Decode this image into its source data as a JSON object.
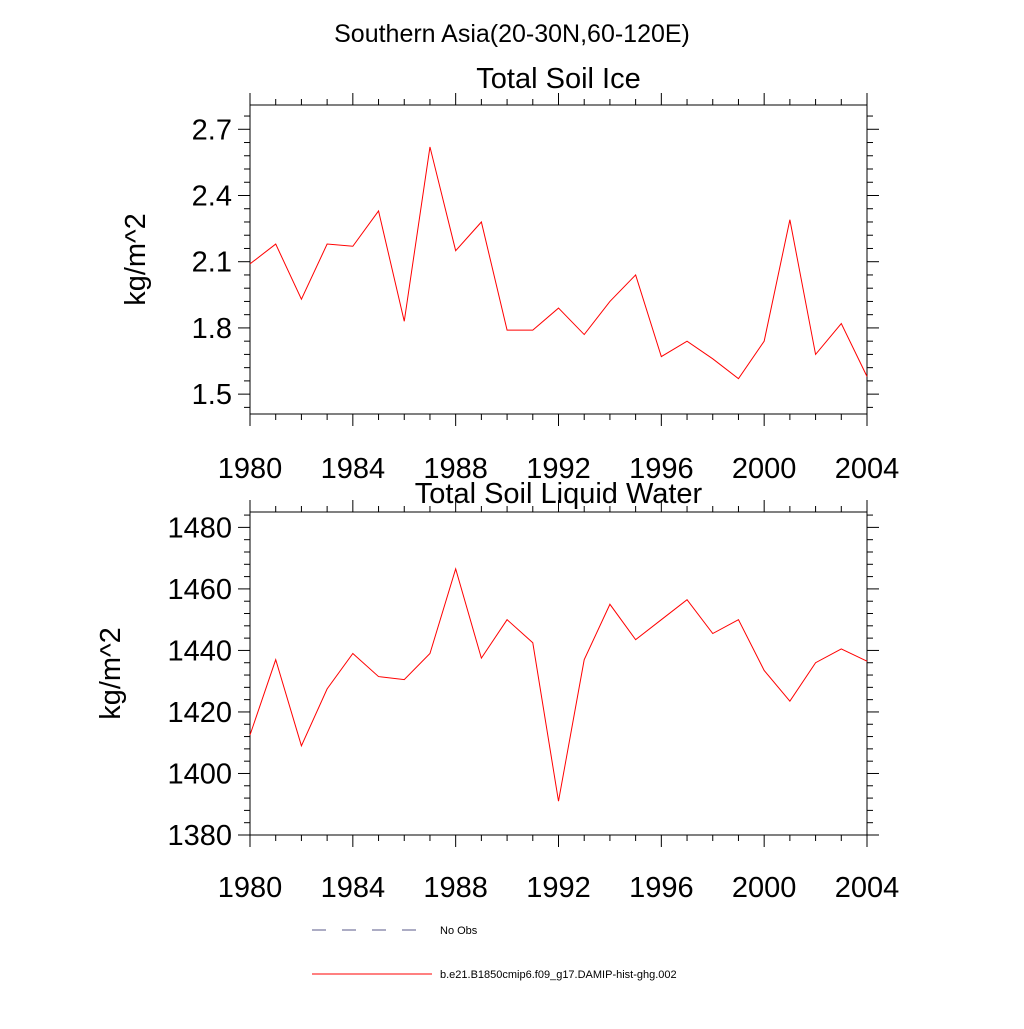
{
  "figure": {
    "title": "Southern Asia(20-30N,60-120E)"
  },
  "chart_data": [
    {
      "type": "line",
      "title": "Total Soil Ice",
      "xlabel": "",
      "ylabel": "kg/m^2",
      "xlim": [
        1980,
        2004
      ],
      "ylim": [
        1.41,
        2.81
      ],
      "xticks": [
        1980,
        1984,
        1988,
        1992,
        1996,
        2000,
        2004
      ],
      "xtick_labels": [
        "1980",
        "1984",
        "1988",
        "1992",
        "1996",
        "2000",
        "2004"
      ],
      "yticks": [
        1.5,
        1.8,
        2.1,
        2.4,
        2.7
      ],
      "ytick_labels": [
        "1.5",
        "1.8",
        "2.1",
        "2.4",
        "2.7"
      ],
      "grid": false,
      "x": [
        1980,
        1981,
        1982,
        1983,
        1984,
        1985,
        1986,
        1987,
        1988,
        1989,
        1990,
        1991,
        1992,
        1993,
        1994,
        1995,
        1996,
        1997,
        1998,
        1999,
        2000,
        2001,
        2002,
        2003,
        2004
      ],
      "series": [
        {
          "name": "b.e21.B1850cmip6.f09_g17.DAMIP-hist-ghg.002",
          "color": "#ff0000",
          "values": [
            2.09,
            2.18,
            1.93,
            2.18,
            2.17,
            2.33,
            1.83,
            2.62,
            2.15,
            2.28,
            1.79,
            1.79,
            1.89,
            1.77,
            1.92,
            2.04,
            1.67,
            1.74,
            1.66,
            1.57,
            1.74,
            2.29,
            1.68,
            1.82,
            1.58
          ]
        }
      ]
    },
    {
      "type": "line",
      "title": "Total Soil Liquid Water",
      "xlabel": "",
      "ylabel": "kg/m^2",
      "xlim": [
        1980,
        2004
      ],
      "ylim": [
        1380,
        1485
      ],
      "xticks": [
        1980,
        1984,
        1988,
        1992,
        1996,
        2000,
        2004
      ],
      "xtick_labels": [
        "1980",
        "1984",
        "1988",
        "1992",
        "1996",
        "2000",
        "2004"
      ],
      "yticks": [
        1380,
        1400,
        1420,
        1440,
        1460,
        1480
      ],
      "ytick_labels": [
        "1380",
        "1400",
        "1420",
        "1440",
        "1460",
        "1480"
      ],
      "grid": false,
      "x": [
        1980,
        1981,
        1982,
        1983,
        1984,
        1985,
        1986,
        1987,
        1988,
        1989,
        1990,
        1991,
        1992,
        1993,
        1994,
        1995,
        1996,
        1997,
        1998,
        1999,
        2000,
        2001,
        2002,
        2003,
        2004
      ],
      "series": [
        {
          "name": "b.e21.B1850cmip6.f09_g17.DAMIP-hist-ghg.002",
          "color": "#ff0000",
          "values": [
            1412.5,
            1437.0,
            1409.0,
            1427.5,
            1439.0,
            1431.5,
            1430.5,
            1439.0,
            1466.5,
            1437.5,
            1450.0,
            1442.5,
            1391.0,
            1437.0,
            1455.0,
            1443.5,
            1450.0,
            1456.5,
            1445.5,
            1450.0,
            1433.5,
            1423.5,
            1436.0,
            1440.5,
            1436.5
          ]
        }
      ]
    }
  ],
  "legend": {
    "placement": "bottom",
    "items": [
      {
        "label": "No Obs",
        "style": "dashed",
        "color": "#5a5a8a"
      },
      {
        "label": "b.e21.B1850cmip6.f09_g17.DAMIP-hist-ghg.002",
        "style": "solid",
        "color": "#ff0000"
      }
    ]
  }
}
